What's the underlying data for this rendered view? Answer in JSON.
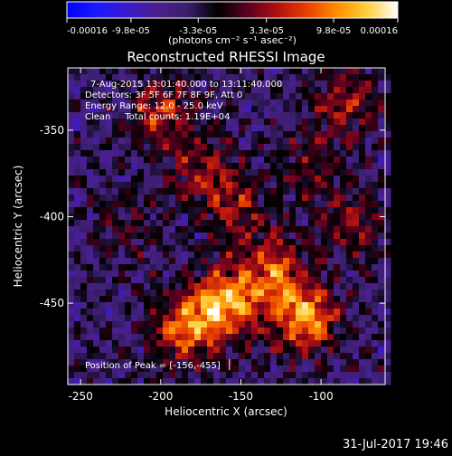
{
  "chart_data": {
    "type": "heatmap",
    "title": "Reconstructed RHESSI Image",
    "xlabel": "Heliocentric X (arcsec)",
    "ylabel": "Heliocentric Y (arcsec)",
    "xlim": [
      -258,
      -60
    ],
    "ylim": [
      -497,
      -314
    ],
    "x_ticks": [
      -250,
      -200,
      -150,
      -100
    ],
    "y_ticks": [
      -450,
      -400,
      -350
    ],
    "x_tick_labels": [
      "-250",
      "-200",
      "-150",
      "-100"
    ],
    "y_tick_labels": [
      "-450",
      "-400",
      "-350"
    ],
    "colorbar": {
      "range": [
        -0.00016,
        0.00016
      ],
      "tick_values": [
        -0.00016,
        -9.8e-05,
        -3.3e-05,
        3.3e-05,
        9.8e-05,
        0.00016
      ],
      "tick_labels": [
        "-0.00016",
        "-9.8e-05",
        "-3.3e-05",
        "3.3e-05",
        "9.8e-05",
        "0.00016"
      ],
      "units_label": "(photons cm⁻² s⁻¹ asec⁻²)",
      "colormap": [
        "#0000ff",
        "#1a1aff",
        "#3a1acc",
        "#4b1f8f",
        "#3a1f6e",
        "#000000",
        "#5a0020",
        "#b01010",
        "#e84000",
        "#ff9000",
        "#ffd040",
        "#ffffff"
      ]
    },
    "annotations": [
      "7-Aug-2015 13:01:40.000 to 13:11:40.000",
      "Detectors: 3F 5F 6F 7F 8F 9F, Att 0",
      "Energy Range: 12.0 - 25.0 keV",
      "Clean     Total counts: 1.19E+04"
    ],
    "peak_label": "Position of Peak = [-156,-455]",
    "peak": {
      "x": -156,
      "y": -455
    },
    "grid": false,
    "bright_sources": [
      {
        "x": -160,
        "y": -450,
        "amp": 0.00016
      },
      {
        "x": -110,
        "y": -458,
        "amp": 0.00015
      },
      {
        "x": -185,
        "y": -465,
        "amp": 0.00012
      },
      {
        "x": -130,
        "y": -432,
        "amp": 0.00011
      },
      {
        "x": -200,
        "y": -340,
        "amp": 9e-05
      },
      {
        "x": -175,
        "y": -375,
        "amp": 8e-05
      },
      {
        "x": -150,
        "y": -395,
        "amp": 7e-05
      },
      {
        "x": -85,
        "y": -335,
        "amp": 8e-05
      },
      {
        "x": -80,
        "y": -405,
        "amp": 7e-05
      },
      {
        "x": -105,
        "y": -370,
        "amp": 5e-05
      },
      {
        "x": -220,
        "y": -405,
        "amp": 4e-05
      }
    ]
  },
  "footer": {
    "timestamp": "31-Jul-2017 19:46"
  }
}
